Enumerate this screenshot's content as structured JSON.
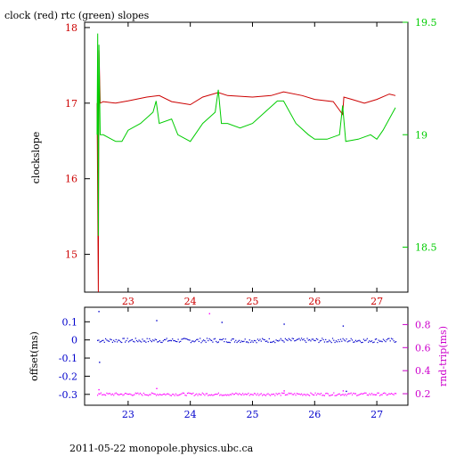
{
  "chart_data": [
    {
      "type": "line",
      "title": "clock (red) rtc (green) slopes",
      "xlabel": "",
      "ylabel": "clockslope",
      "ylabel_right": "",
      "xlim": [
        22.3,
        27.5
      ],
      "ylim": [
        14.5,
        18.07
      ],
      "ylim_right": [
        18.3,
        19.5
      ],
      "x_ticks": [
        "23",
        "24",
        "25",
        "26",
        "27"
      ],
      "y_ticks": [
        "15",
        "16",
        "17",
        "18"
      ],
      "y_ticks_right": [
        "18.5",
        "19",
        "19.5"
      ],
      "series": [
        {
          "axis": "left",
          "color": "#cc0000",
          "x": [
            22.5,
            22.52,
            22.53,
            22.55,
            22.6,
            22.8,
            23.0,
            23.3,
            23.5,
            23.7,
            24.0,
            24.2,
            24.45,
            24.6,
            25.0,
            25.3,
            25.5,
            25.8,
            26.0,
            26.3,
            26.45,
            26.47,
            26.6,
            26.8,
            27.0,
            27.2,
            27.3
          ],
          "values": [
            17.0,
            14.5,
            17.7,
            17.0,
            17.02,
            17.0,
            17.03,
            17.08,
            17.1,
            17.02,
            16.98,
            17.08,
            17.14,
            17.1,
            17.08,
            17.1,
            17.15,
            17.1,
            17.05,
            17.02,
            16.85,
            17.08,
            17.05,
            17.0,
            17.05,
            17.12,
            17.1
          ]
        },
        {
          "axis": "right",
          "color": "#00cc00",
          "x": [
            22.5,
            22.51,
            22.52,
            22.53,
            22.55,
            22.6,
            22.8,
            22.9,
            23.0,
            23.2,
            23.4,
            23.45,
            23.5,
            23.7,
            23.8,
            24.0,
            24.2,
            24.4,
            24.45,
            24.5,
            24.6,
            24.8,
            25.0,
            25.2,
            25.4,
            25.5,
            25.7,
            25.9,
            26.0,
            26.2,
            26.4,
            26.45,
            26.5,
            26.7,
            26.9,
            27.0,
            27.1,
            27.3
          ],
          "values": [
            19.0,
            19.45,
            18.55,
            19.4,
            19.0,
            19.0,
            18.97,
            18.97,
            19.02,
            19.05,
            19.1,
            19.15,
            19.05,
            19.07,
            19.0,
            18.97,
            19.05,
            19.1,
            19.2,
            19.05,
            19.05,
            19.03,
            19.05,
            19.1,
            19.15,
            19.15,
            19.05,
            19.0,
            18.98,
            18.98,
            19.0,
            19.13,
            18.97,
            18.98,
            19.0,
            18.98,
            19.02,
            19.12
          ]
        }
      ]
    },
    {
      "type": "scatter",
      "title": "",
      "xlabel": "",
      "ylabel": "offset(ms)",
      "ylabel_right": "rnd-trip(ms)",
      "xlim": [
        22.3,
        27.5
      ],
      "ylim": [
        -0.36,
        0.18
      ],
      "ylim_right": [
        0.1,
        0.95
      ],
      "x_ticks": [
        "23",
        "24",
        "25",
        "26",
        "27"
      ],
      "y_ticks": [
        "-0.3",
        "-0.2",
        "-0.1",
        "0",
        "0.1"
      ],
      "y_ticks_right": [
        "0.2",
        "0.4",
        "0.6",
        "0.8"
      ],
      "series": [
        {
          "axis": "left",
          "color": "#0000cc",
          "x_range": [
            22.5,
            27.3
          ],
          "center": 0.0,
          "spread": 0.012,
          "outliers": [
            [
              22.52,
              0.16
            ],
            [
              22.53,
              -0.12
            ],
            [
              23.45,
              0.11
            ],
            [
              24.5,
              0.1
            ],
            [
              25.5,
              0.09
            ],
            [
              26.45,
              0.08
            ],
            [
              26.5,
              -0.28
            ]
          ]
        },
        {
          "axis": "right",
          "color": "#ff00ff",
          "x_range": [
            22.5,
            27.3
          ],
          "center": 0.2,
          "spread": 0.012,
          "outliers": [
            [
              22.52,
              0.24
            ],
            [
              23.45,
              0.25
            ],
            [
              24.3,
              0.9
            ],
            [
              25.5,
              0.23
            ],
            [
              26.45,
              0.23
            ]
          ]
        }
      ]
    }
  ],
  "footer": "2011-05-22 monopole.physics.ubc.ca",
  "colors": {
    "left_axis_top": "#cc0000",
    "right_axis_top": "#00cc00",
    "left_axis_bottom": "#0000cc",
    "right_axis_bottom": "#cc00cc",
    "red_series": "#cc0000",
    "green_series": "#00cc00",
    "blue_series": "#0000cc",
    "magenta_series": "#ff00ff"
  }
}
